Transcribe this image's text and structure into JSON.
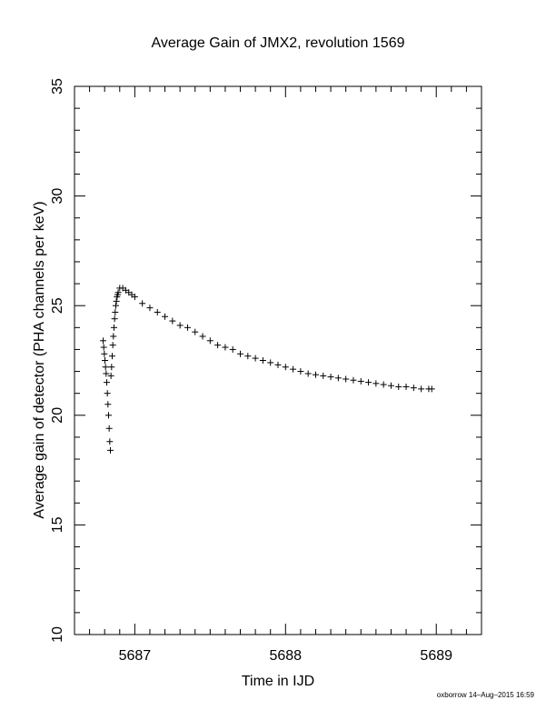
{
  "chart_data": {
    "type": "scatter",
    "title": "Average Gain of JMX2, revolution 1569",
    "xlabel": "Time in IJD",
    "ylabel": "Average gain of detector (PHA channels per keV)",
    "xlim": [
      5686.6,
      5689.3
    ],
    "ylim": [
      10,
      35
    ],
    "xticks": [
      5687,
      5688,
      5689
    ],
    "yticks": [
      10,
      15,
      20,
      25,
      30,
      35
    ],
    "x_minor_step": 0.1,
    "y_minor_step": 1,
    "marker": "plus",
    "grid": false,
    "legend": "none",
    "footer": "oxborrow 14–Aug–2015 16:59",
    "series": [
      {
        "x": [
          5686.79,
          5686.794,
          5686.798,
          5686.802,
          5686.806,
          5686.81,
          5686.814,
          5686.818,
          5686.822,
          5686.826,
          5686.83,
          5686.834,
          5686.838,
          5686.842,
          5686.846,
          5686.85,
          5686.854,
          5686.858,
          5686.862,
          5686.866,
          5686.87,
          5686.874,
          5686.878,
          5686.882,
          5686.886,
          5686.89,
          5686.9,
          5686.92,
          5686.94,
          5686.96,
          5686.98,
          5687.0,
          5687.05,
          5687.1,
          5687.15,
          5687.2,
          5687.25,
          5687.3,
          5687.35,
          5687.4,
          5687.45,
          5687.5,
          5687.55,
          5687.6,
          5687.65,
          5687.7,
          5687.75,
          5687.8,
          5687.85,
          5687.9,
          5687.95,
          5688.0,
          5688.05,
          5688.1,
          5688.15,
          5688.2,
          5688.25,
          5688.3,
          5688.35,
          5688.4,
          5688.45,
          5688.5,
          5688.55,
          5688.6,
          5688.65,
          5688.7,
          5688.75,
          5688.8,
          5688.85,
          5688.9,
          5688.95,
          5688.97
        ],
        "y": [
          23.4,
          23.1,
          22.8,
          22.5,
          22.2,
          21.9,
          21.5,
          21.0,
          20.5,
          20.0,
          19.4,
          18.8,
          18.4,
          21.8,
          22.2,
          22.7,
          23.2,
          23.6,
          24.0,
          24.4,
          24.7,
          25.0,
          25.2,
          25.4,
          25.5,
          25.6,
          25.8,
          25.8,
          25.7,
          25.6,
          25.5,
          25.4,
          25.1,
          24.9,
          24.7,
          24.5,
          24.3,
          24.1,
          24.0,
          23.8,
          23.6,
          23.4,
          23.2,
          23.1,
          23.0,
          22.8,
          22.7,
          22.6,
          22.5,
          22.4,
          22.3,
          22.2,
          22.1,
          22.0,
          21.9,
          21.85,
          21.8,
          21.75,
          21.7,
          21.65,
          21.6,
          21.55,
          21.5,
          21.45,
          21.4,
          21.35,
          21.3,
          21.3,
          21.25,
          21.2,
          21.2,
          21.2
        ]
      }
    ]
  }
}
